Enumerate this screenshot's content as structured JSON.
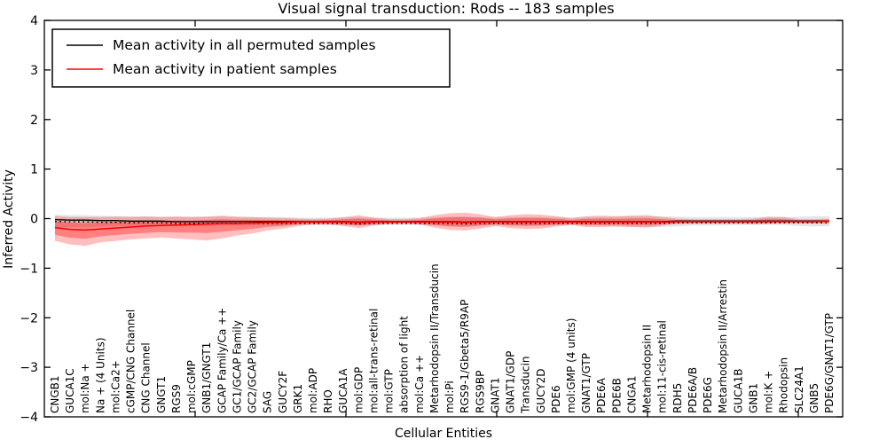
{
  "figure": {
    "title": "Visual signal transduction: Rods -- 183 samples",
    "xlabel": "Cellular Entities",
    "ylabel": "Inferred Activity",
    "legend": [
      {
        "label": "Mean activity in all permuted samples",
        "color": "#000000"
      },
      {
        "label": "Mean activity in patient samples",
        "color": "#ff0000"
      }
    ]
  },
  "chart_data": {
    "type": "line",
    "title": "Visual signal transduction: Rods -- 183 samples",
    "xlabel": "Cellular Entities",
    "ylabel": "Inferred Activity",
    "ylim": [
      -4,
      4
    ],
    "yticks": [
      -4,
      -3,
      -2,
      -1,
      0,
      1,
      2,
      3,
      4
    ],
    "grid": false,
    "legend_position": "upper left",
    "categories": [
      "CNGB1",
      "GUCA1C",
      "mol:Na +",
      "Na + (4 Units)",
      "mol:Ca2+",
      "cGMP/CNG Channel",
      "CNG Channel",
      "GNGT1",
      "RGS9",
      "mol:cGMP",
      "GNB1/GNGT1",
      "GCAP Family/Ca ++",
      "GC1/GCAP Family",
      "GC2/GCAP Family",
      "SAG",
      "GUCY2F",
      "GRK1",
      "mol:ADP",
      "RHO",
      "GUCA1A",
      "mol:GDP",
      "mol:all-trans-retinal",
      "mol:GTP",
      "absorption of light",
      "mol:Ca ++",
      "Metarhodopsin II/Transducin",
      "mol:Pi",
      "RGS9-1/Gbeta5/R9AP",
      "RGS9BP",
      "GNAT1",
      "GNAT1/GDP",
      "Transducin",
      "GUCY2D",
      "PDE6",
      "mol:GMP (4 units)",
      "GNAT1/GTP",
      "PDE6A",
      "PDE6B",
      "CNGA1",
      "Metarhodopsin II",
      "mol:11-cis-retinal",
      "RDH5",
      "PDE6A/B",
      "PDE6G",
      "Metarhodopsin II/Arrestin",
      "GUCA1B",
      "GNB1",
      "mol:K +",
      "Rhodopsin",
      "SLC24A1",
      "GNB5",
      "PDE6G/GNAT1/GTP"
    ],
    "series": [
      {
        "name": "Mean activity in all permuted samples",
        "color": "#000000",
        "values": [
          -0.02,
          -0.03,
          -0.03,
          -0.04,
          -0.04,
          -0.05,
          -0.05,
          -0.05,
          -0.06,
          -0.06,
          -0.06,
          -0.06,
          -0.06,
          -0.06,
          -0.06,
          -0.06,
          -0.06,
          -0.06,
          -0.06,
          -0.06,
          -0.07,
          -0.06,
          -0.06,
          -0.06,
          -0.06,
          -0.06,
          -0.06,
          -0.07,
          -0.06,
          -0.06,
          -0.06,
          -0.06,
          -0.06,
          -0.06,
          -0.06,
          -0.06,
          -0.06,
          -0.06,
          -0.06,
          -0.06,
          -0.06,
          -0.05,
          -0.05,
          -0.05,
          -0.05,
          -0.05,
          -0.05,
          -0.05,
          -0.05,
          -0.05,
          -0.05,
          -0.05
        ]
      },
      {
        "name": "Mean activity in patient samples",
        "color": "#ff0000",
        "values": [
          -0.18,
          -0.22,
          -0.23,
          -0.21,
          -0.19,
          -0.17,
          -0.15,
          -0.14,
          -0.13,
          -0.12,
          -0.11,
          -0.1,
          -0.1,
          -0.09,
          -0.08,
          -0.08,
          -0.07,
          -0.07,
          -0.07,
          -0.07,
          -0.08,
          -0.07,
          -0.07,
          -0.07,
          -0.07,
          -0.07,
          -0.07,
          -0.08,
          -0.07,
          -0.07,
          -0.07,
          -0.07,
          -0.07,
          -0.07,
          -0.07,
          -0.07,
          -0.07,
          -0.07,
          -0.07,
          -0.07,
          -0.07,
          -0.06,
          -0.06,
          -0.06,
          -0.06,
          -0.06,
          -0.06,
          -0.06,
          -0.06,
          -0.06,
          -0.06,
          -0.05
        ]
      }
    ],
    "bands": [
      {
        "name": "permuted samples range",
        "color": "rgba(0,0,0,0.10)",
        "upper": [
          0.08,
          0.07,
          0.07,
          0.06,
          0.05,
          0.05,
          0.05,
          0.04,
          0.04,
          0.04,
          0.04,
          0.04,
          0.03,
          0.03,
          0.03,
          0.03,
          0.02,
          0.02,
          0.02,
          0.02,
          0.03,
          0.02,
          0.02,
          0.02,
          0.02,
          0.03,
          0.04,
          0.04,
          0.03,
          0.03,
          0.03,
          0.03,
          0.03,
          0.03,
          0.02,
          0.03,
          0.03,
          0.04,
          0.05,
          0.05,
          0.05,
          0.04,
          0.03,
          0.03,
          0.03,
          0.03,
          0.03,
          0.03,
          0.03,
          0.04,
          0.05,
          0.05
        ],
        "lower": [
          -0.18,
          -0.17,
          -0.17,
          -0.16,
          -0.15,
          -0.15,
          -0.15,
          -0.15,
          -0.15,
          -0.15,
          -0.15,
          -0.14,
          -0.14,
          -0.14,
          -0.14,
          -0.13,
          -0.13,
          -0.13,
          -0.13,
          -0.13,
          -0.14,
          -0.13,
          -0.13,
          -0.13,
          -0.13,
          -0.14,
          -0.15,
          -0.15,
          -0.14,
          -0.14,
          -0.14,
          -0.14,
          -0.14,
          -0.14,
          -0.13,
          -0.14,
          -0.14,
          -0.16,
          -0.17,
          -0.17,
          -0.17,
          -0.16,
          -0.14,
          -0.14,
          -0.14,
          -0.13,
          -0.13,
          -0.13,
          -0.13,
          -0.15,
          -0.16,
          -0.15
        ]
      },
      {
        "name": "patient samples range",
        "color": "rgba(255,0,0,0.25)",
        "inner_color": "rgba(255,0,0,0.33)",
        "upper": [
          0.05,
          0.03,
          0.03,
          0.03,
          0.04,
          0.03,
          0.04,
          0.03,
          0.04,
          0.03,
          0.04,
          0.06,
          0.04,
          0.03,
          0.02,
          0.01,
          0.0,
          -0.01,
          0.0,
          0.03,
          0.07,
          0.02,
          -0.01,
          -0.01,
          0.01,
          0.07,
          0.11,
          0.12,
          0.09,
          0.03,
          0.07,
          0.09,
          0.08,
          0.05,
          0.01,
          0.05,
          0.06,
          0.05,
          0.06,
          0.07,
          0.03,
          0.0,
          -0.01,
          -0.01,
          -0.01,
          -0.01,
          0.0,
          0.04,
          0.03,
          -0.01,
          -0.01,
          0.0
        ],
        "lower": [
          -0.45,
          -0.52,
          -0.55,
          -0.48,
          -0.45,
          -0.42,
          -0.4,
          -0.38,
          -0.4,
          -0.42,
          -0.44,
          -0.4,
          -0.34,
          -0.3,
          -0.24,
          -0.2,
          -0.15,
          -0.12,
          -0.12,
          -0.15,
          -0.19,
          -0.14,
          -0.11,
          -0.1,
          -0.12,
          -0.18,
          -0.23,
          -0.24,
          -0.2,
          -0.15,
          -0.19,
          -0.21,
          -0.2,
          -0.16,
          -0.13,
          -0.17,
          -0.17,
          -0.16,
          -0.17,
          -0.18,
          -0.14,
          -0.11,
          -0.1,
          -0.1,
          -0.1,
          -0.1,
          -0.11,
          -0.1,
          -0.09,
          -0.09,
          -0.1,
          -0.1
        ]
      }
    ]
  }
}
